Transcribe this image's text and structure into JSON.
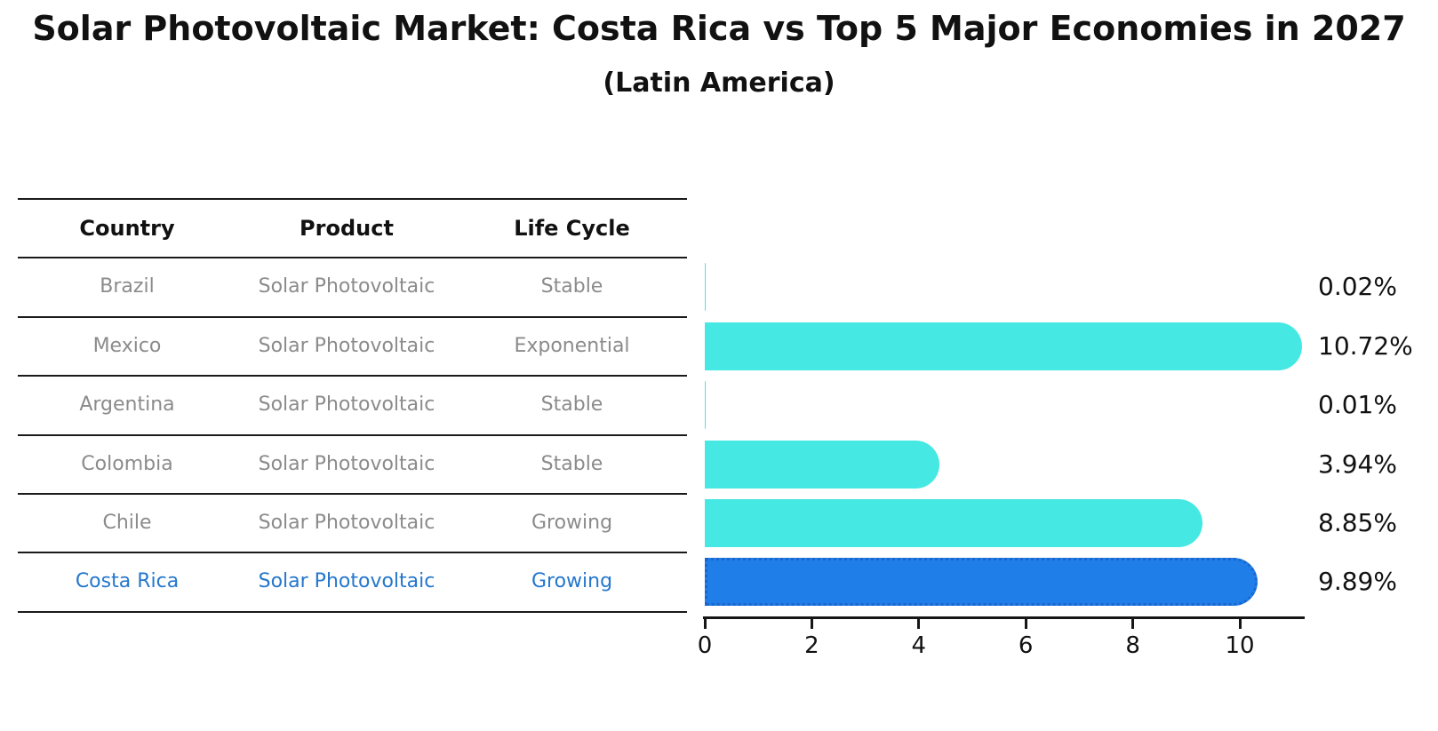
{
  "title": "Solar Photovoltaic Market: Costa Rica vs Top 5 Major Economies in 2027",
  "subtitle": "(Latin America)",
  "table": {
    "headers": [
      "Country",
      "Product",
      "Life Cycle"
    ]
  },
  "chart_data": {
    "type": "bar",
    "orientation": "horizontal",
    "title": "Solar Photovoltaic Market: Costa Rica vs Top 5 Major Economies in 2027",
    "subtitle": "(Latin America)",
    "categories": [
      "Brazil",
      "Mexico",
      "Argentina",
      "Colombia",
      "Chile",
      "Costa Rica"
    ],
    "values": [
      0.02,
      10.72,
      0.01,
      3.94,
      8.85,
      9.89
    ],
    "rows": [
      {
        "country": "Brazil",
        "product": "Solar Photovoltaic",
        "life_cycle": "Stable",
        "value": 0.02,
        "label": "0.02%",
        "highlight": false
      },
      {
        "country": "Mexico",
        "product": "Solar Photovoltaic",
        "life_cycle": "Exponential",
        "value": 10.72,
        "label": "10.72%",
        "highlight": false
      },
      {
        "country": "Argentina",
        "product": "Solar Photovoltaic",
        "life_cycle": "Stable",
        "value": 0.01,
        "label": "0.01%",
        "highlight": false
      },
      {
        "country": "Colombia",
        "product": "Solar Photovoltaic",
        "life_cycle": "Stable",
        "value": 3.94,
        "label": "3.94%",
        "highlight": false
      },
      {
        "country": "Chile",
        "product": "Solar Photovoltaic",
        "life_cycle": "Growing",
        "value": 8.85,
        "label": "8.85%",
        "highlight": false
      },
      {
        "country": "Costa Rica",
        "product": "Solar Photovoltaic",
        "life_cycle": "Growing",
        "value": 9.89,
        "label": "9.89%",
        "highlight": true
      }
    ],
    "xticks": [
      0,
      2,
      4,
      6,
      8,
      10
    ],
    "xlim": [
      0,
      11.2
    ],
    "xlabel": "",
    "ylabel": "",
    "grid": false,
    "legend": false,
    "colors": {
      "bar": "#45E8E2",
      "highlight_bar": "#1F7EE8",
      "highlight_bar_border": "#1A66CC",
      "highlight_text": "#2577CD",
      "row_text": "#8B8B8B",
      "header_text": "#111111",
      "axis": "#161616",
      "value_label": "#111111"
    }
  }
}
